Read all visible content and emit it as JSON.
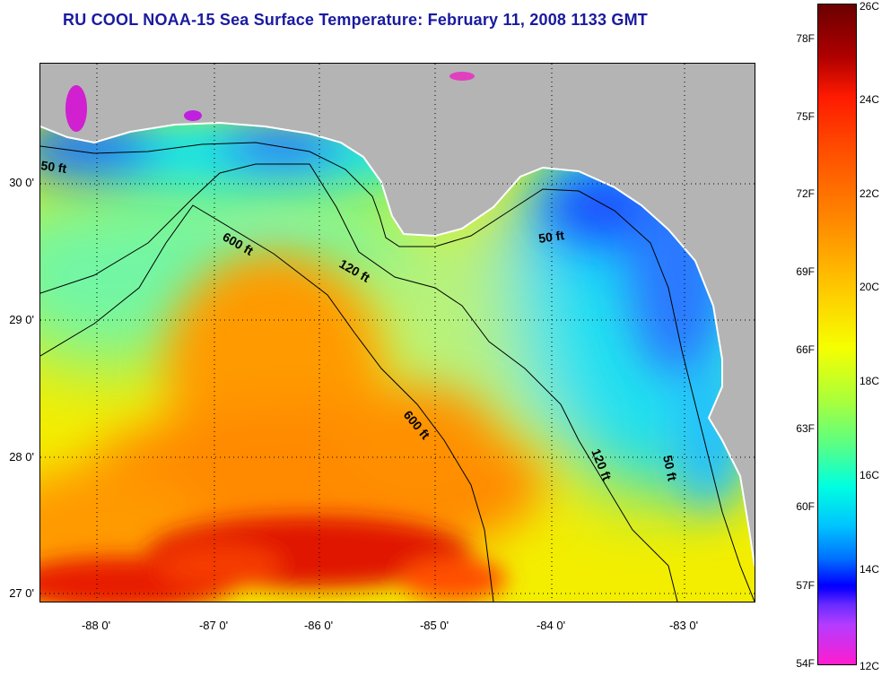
{
  "title": "RU COOL  NOAA-15  Sea Surface Temperature:  February 11, 2008 1133 GMT",
  "map": {
    "latitude_labels": [
      "30 0'",
      "29 0'",
      "28 0'",
      "27 0'"
    ],
    "longitude_labels": [
      "-88 0'",
      "-87 0'",
      "-86 0'",
      "-85 0'",
      "-84 0'",
      "-83 0'"
    ],
    "depth_contours": [
      "50 ft",
      "600 ft",
      "120 ft",
      "50 ft",
      "600 ft",
      "120 ft",
      "50 ft"
    ],
    "land_color": "#b4b4b4"
  },
  "colorbar": {
    "fahrenheit_labels": [
      "78F",
      "75F",
      "72F",
      "69F",
      "66F",
      "63F",
      "60F",
      "57F",
      "54F"
    ],
    "celsius_labels": [
      "26C",
      "24C",
      "22C",
      "20C",
      "18C",
      "16C",
      "14C",
      "12C"
    ]
  }
}
